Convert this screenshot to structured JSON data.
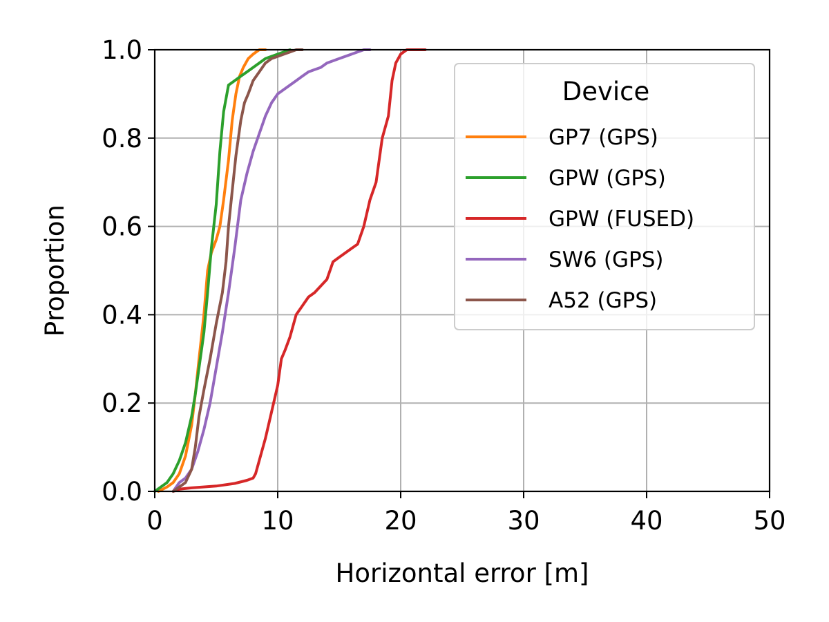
{
  "chart_data": {
    "type": "line",
    "title": "",
    "xlabel": "Horizontal error [m]",
    "ylabel": "Proportion",
    "xlim": [
      0,
      50
    ],
    "ylim": [
      0,
      1
    ],
    "xticks": [
      0,
      10,
      20,
      30,
      40,
      50
    ],
    "yticks": [
      0.0,
      0.2,
      0.4,
      0.6,
      0.8,
      1.0
    ],
    "xtick_labels": [
      "0",
      "10",
      "20",
      "30",
      "40",
      "50"
    ],
    "ytick_labels": [
      "0.0",
      "0.2",
      "0.4",
      "0.6",
      "0.8",
      "1.0"
    ],
    "grid": true,
    "legend": {
      "title": "Device",
      "placement": "top-right"
    },
    "series": [
      {
        "name": "GP7 (GPS)",
        "color": "#ff7f0e",
        "x": [
          0.3,
          1.0,
          1.5,
          2.0,
          2.5,
          3.0,
          3.3,
          3.6,
          4.0,
          4.3,
          4.6,
          5.0,
          5.3,
          5.6,
          6.0,
          6.3,
          6.6,
          6.9,
          7.2,
          7.6,
          8.0,
          8.5,
          9.0
        ],
        "y": [
          0.0,
          0.01,
          0.02,
          0.04,
          0.08,
          0.15,
          0.22,
          0.3,
          0.4,
          0.5,
          0.54,
          0.57,
          0.6,
          0.66,
          0.75,
          0.84,
          0.9,
          0.94,
          0.96,
          0.98,
          0.99,
          1.0,
          1.0
        ]
      },
      {
        "name": "GPW (GPS)",
        "color": "#2ca02c",
        "x": [
          0.0,
          0.5,
          1.0,
          1.5,
          2.0,
          2.5,
          3.0,
          3.3,
          3.6,
          4.0,
          4.3,
          4.6,
          5.0,
          5.3,
          5.6,
          6.0,
          6.5,
          7.0,
          7.5,
          8.0,
          9.0,
          10.0,
          10.5,
          11.0
        ],
        "y": [
          0.0,
          0.01,
          0.02,
          0.04,
          0.07,
          0.11,
          0.17,
          0.22,
          0.28,
          0.36,
          0.45,
          0.55,
          0.65,
          0.77,
          0.86,
          0.92,
          0.93,
          0.94,
          0.95,
          0.96,
          0.98,
          0.99,
          0.995,
          1.0
        ]
      },
      {
        "name": "GPW (FUSED)",
        "color": "#d62728",
        "x": [
          1.5,
          2.0,
          3.0,
          5.0,
          6.5,
          7.5,
          8.0,
          8.2,
          8.5,
          9.0,
          9.5,
          10.0,
          10.3,
          10.6,
          11.0,
          11.5,
          12.0,
          12.5,
          13.0,
          14.0,
          14.5,
          15.0,
          15.5,
          16.0,
          16.5,
          17.0,
          17.5,
          18.0,
          18.5,
          19.0,
          19.3,
          19.6,
          20.0,
          20.5,
          21.0,
          22.0
        ],
        "y": [
          0.0,
          0.005,
          0.008,
          0.012,
          0.018,
          0.025,
          0.03,
          0.04,
          0.07,
          0.12,
          0.18,
          0.24,
          0.3,
          0.32,
          0.35,
          0.4,
          0.42,
          0.44,
          0.45,
          0.48,
          0.52,
          0.53,
          0.54,
          0.55,
          0.56,
          0.6,
          0.66,
          0.7,
          0.8,
          0.85,
          0.93,
          0.97,
          0.99,
          1.0,
          1.0,
          1.0
        ]
      },
      {
        "name": "SW6 (GPS)",
        "color": "#9467bd",
        "x": [
          1.5,
          2.0,
          2.5,
          3.0,
          3.5,
          4.0,
          4.5,
          5.0,
          5.5,
          6.0,
          6.5,
          7.0,
          7.5,
          8.0,
          8.5,
          9.0,
          9.5,
          10.0,
          10.5,
          11.0,
          11.5,
          12.0,
          12.5,
          13.0,
          13.5,
          14.0,
          15.0,
          16.0,
          17.0,
          17.5
        ],
        "y": [
          0.0,
          0.02,
          0.03,
          0.05,
          0.09,
          0.14,
          0.2,
          0.28,
          0.36,
          0.45,
          0.55,
          0.66,
          0.72,
          0.77,
          0.81,
          0.85,
          0.88,
          0.9,
          0.91,
          0.92,
          0.93,
          0.94,
          0.95,
          0.955,
          0.96,
          0.97,
          0.98,
          0.99,
          1.0,
          1.0
        ]
      },
      {
        "name": "A52 (GPS)",
        "color": "#8c564b",
        "x": [
          1.5,
          2.5,
          3.0,
          3.3,
          3.6,
          4.0,
          4.5,
          5.0,
          5.5,
          5.8,
          6.0,
          6.3,
          6.6,
          7.0,
          7.3,
          7.6,
          8.0,
          8.5,
          9.0,
          9.5,
          10.0,
          10.5,
          11.0,
          11.5,
          12.0
        ],
        "y": [
          0.0,
          0.02,
          0.05,
          0.1,
          0.17,
          0.23,
          0.3,
          0.38,
          0.45,
          0.52,
          0.6,
          0.68,
          0.76,
          0.84,
          0.88,
          0.9,
          0.93,
          0.95,
          0.97,
          0.98,
          0.985,
          0.99,
          0.995,
          1.0,
          1.0
        ]
      }
    ]
  }
}
